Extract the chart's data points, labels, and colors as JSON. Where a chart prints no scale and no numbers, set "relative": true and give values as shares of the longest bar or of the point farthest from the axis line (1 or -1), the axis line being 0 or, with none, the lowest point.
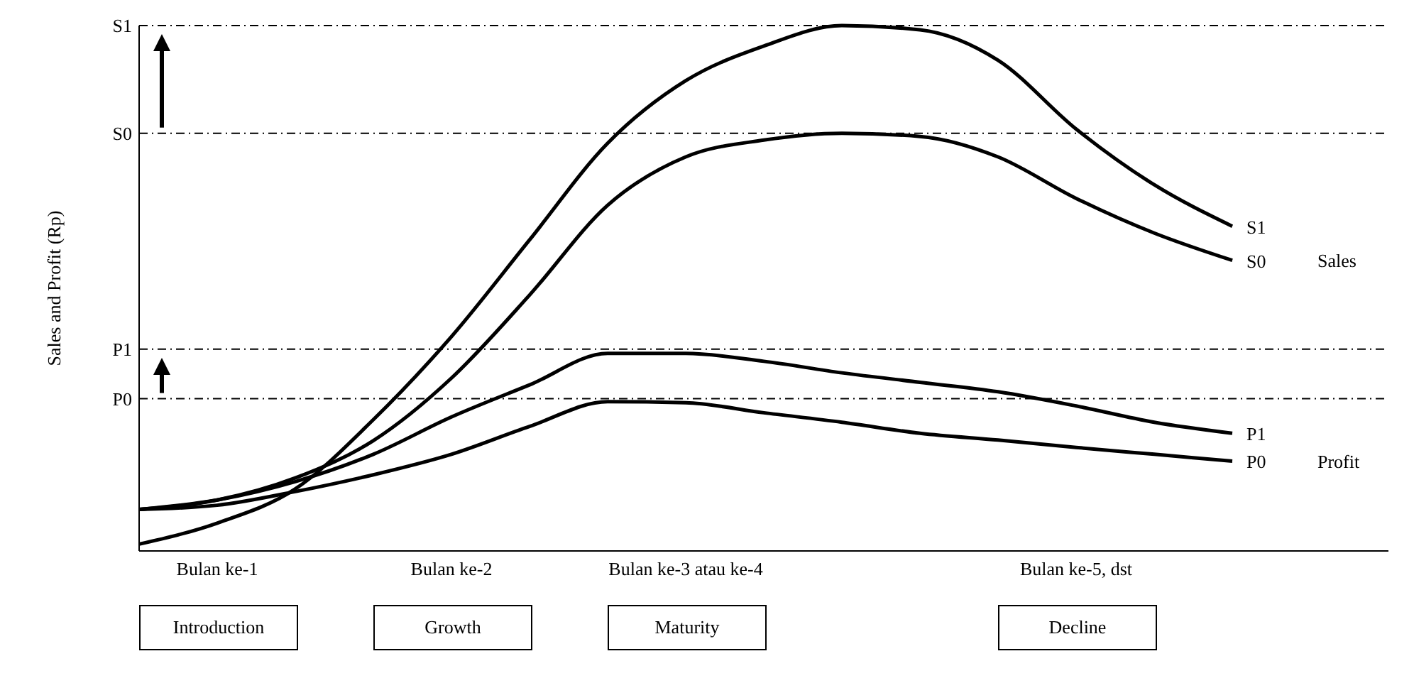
{
  "chart_data": {
    "type": "line",
    "relative": true,
    "ylabel": "Sales and Profit (Rp)",
    "categories": [
      null,
      "Bulan ke-1",
      null,
      null,
      "Bulan ke-2",
      null,
      null,
      "Bulan ke-3 atau ke-4",
      null,
      null,
      null,
      null,
      "Bulan ke-5, dst",
      null,
      null,
      null,
      null
    ],
    "series": [
      {
        "name": "S1",
        "color": "#000000",
        "values": [
          0.013,
          0.053,
          0.118,
          0.25,
          0.408,
          0.592,
          0.776,
          0.895,
          0.961,
          1,
          0.992,
          0.934,
          0.803,
          0.697,
          0.618,
          null,
          null
        ]
      },
      {
        "name": "S0",
        "color": "#000000",
        "values": [
          0.079,
          0.097,
          0.139,
          0.21,
          0.329,
          0.487,
          0.658,
          0.75,
          0.782,
          0.795,
          0.789,
          0.75,
          0.671,
          0.605,
          0.553,
          null,
          null
        ]
      },
      {
        "name": "P1",
        "color": "#000000",
        "values": [
          0.079,
          0.097,
          0.132,
          0.184,
          0.255,
          0.316,
          0.376,
          0.376,
          0.361,
          0.339,
          0.321,
          0.303,
          0.276,
          0.245,
          0.224,
          null,
          null
        ]
      },
      {
        "name": "P0",
        "color": "#000000",
        "values": [
          0.079,
          0.087,
          0.113,
          0.145,
          0.184,
          0.237,
          0.284,
          0.282,
          0.263,
          0.245,
          0.224,
          0.211,
          0.197,
          0.184,
          0.171,
          null,
          null
        ]
      }
    ],
    "ref_lines": [
      {
        "axis": "y",
        "value": 1,
        "label": "S1",
        "line_style": "dashed"
      },
      {
        "axis": "y",
        "value": 0.795,
        "label": "S0",
        "line_style": "dashed"
      },
      {
        "axis": "y",
        "value": 0.384,
        "label": "P1",
        "line_style": "dashed"
      },
      {
        "axis": "y",
        "value": 0.29,
        "label": "P0",
        "line_style": "dashed"
      }
    ],
    "annotations": [
      "Sales",
      "Profit",
      "Introduction",
      "Growth",
      "Maturity",
      "Decline"
    ],
    "legend": false,
    "grid": false,
    "marker": "none",
    "line_style": "solid"
  }
}
